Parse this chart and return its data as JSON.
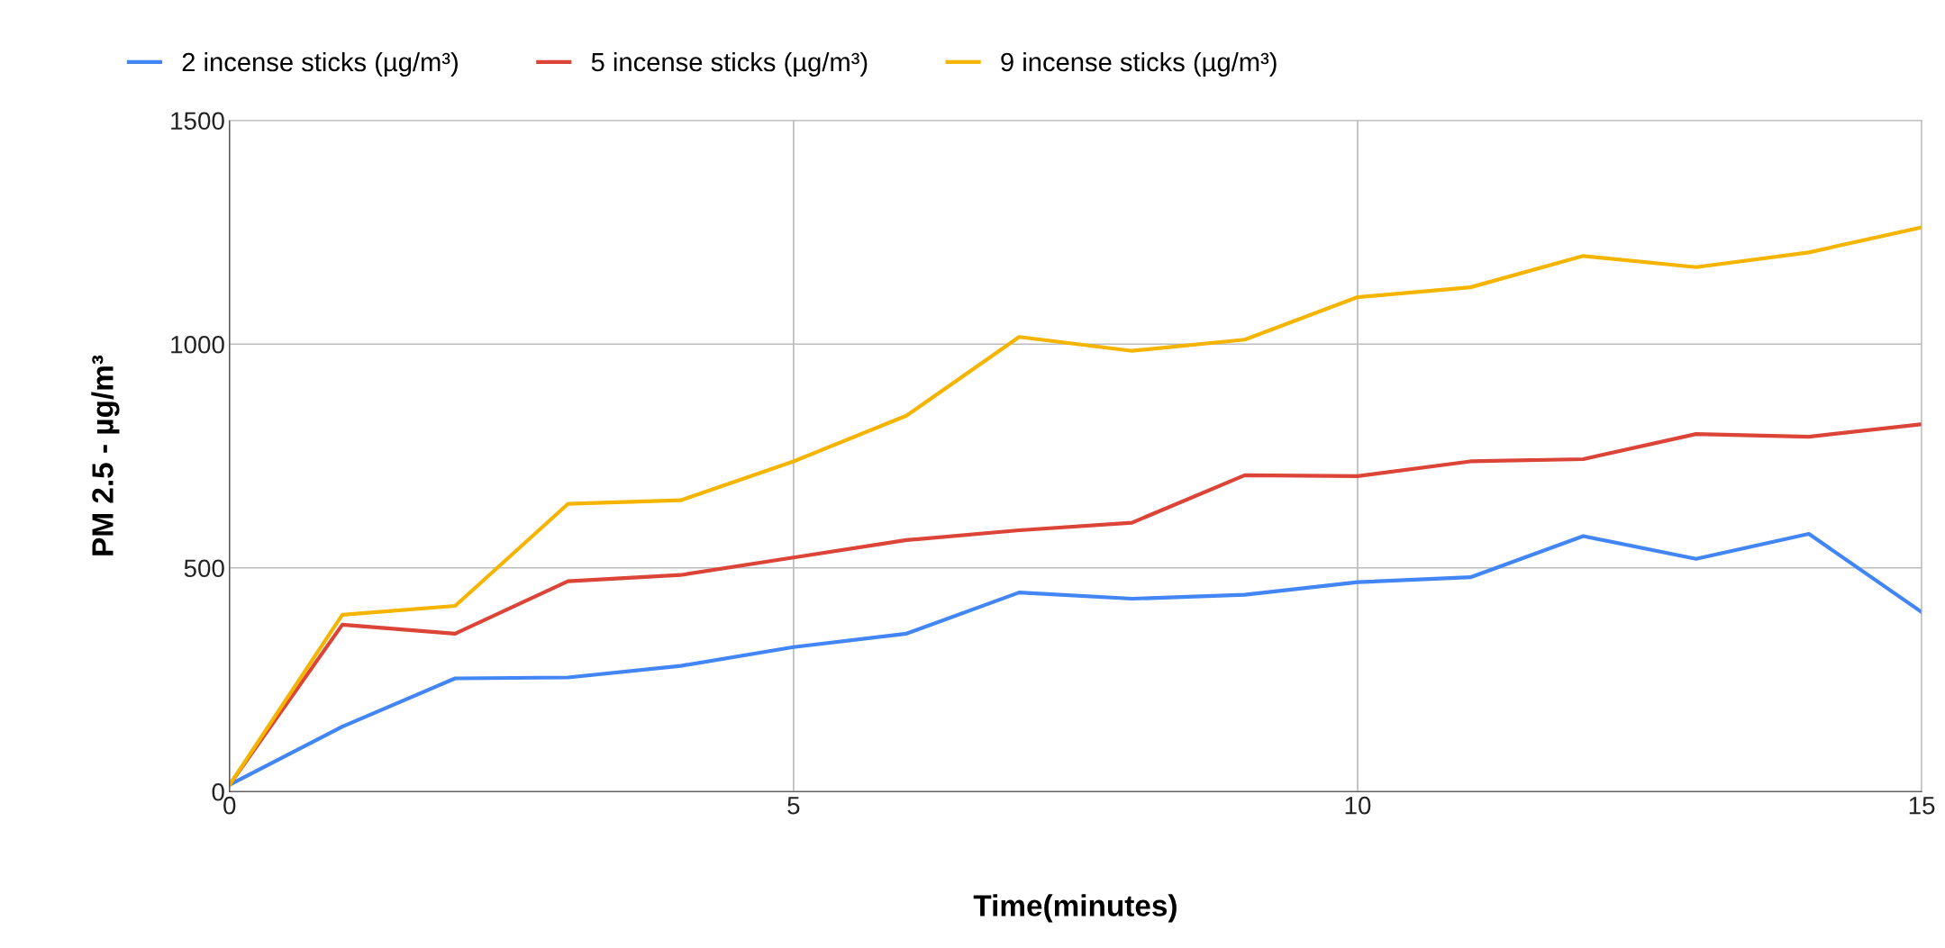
{
  "chart_data": {
    "type": "line",
    "xlabel": "Time(minutes)",
    "ylabel": "PM 2.5 - µg/m³",
    "x": [
      0,
      1,
      2,
      3,
      4,
      5,
      6,
      7,
      8,
      9,
      10,
      11,
      12,
      13,
      14,
      15
    ],
    "series": [
      {
        "name": "2 incense sticks (µg/m³)",
        "color": "#4285f4",
        "values": [
          15,
          145,
          253,
          255,
          281,
          323,
          353,
          445,
          431,
          440,
          468,
          479,
          571,
          520,
          576,
          401
        ]
      },
      {
        "name": "5 incense sticks (µg/m³)",
        "color": "#db4437",
        "values": [
          15,
          373,
          353,
          470,
          484,
          523,
          562,
          584,
          601,
          707,
          705,
          738,
          743,
          799,
          793,
          821
        ]
      },
      {
        "name": "9 incense sticks (µg/m³)",
        "color": "#f4b400",
        "values": [
          15,
          395,
          415,
          643,
          651,
          738,
          840,
          1016,
          985,
          1010,
          1105,
          1127,
          1197,
          1172,
          1205,
          1261
        ]
      }
    ],
    "xlim": [
      0,
      15
    ],
    "xticks": [
      0,
      5,
      10,
      15
    ],
    "ylim": [
      0,
      1500
    ],
    "yticks": [
      0,
      500,
      1000,
      1500
    ],
    "grid": true,
    "legend": "top",
    "marker": "none",
    "line_style": "solid"
  }
}
